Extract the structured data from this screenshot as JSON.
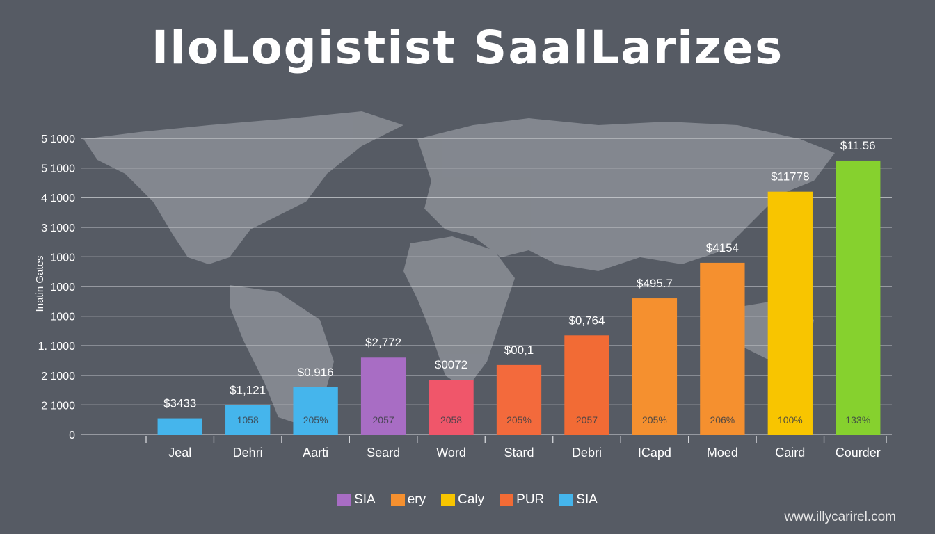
{
  "title": "IloLogistist SaalLarizes",
  "watermark": "www.illycarirel.com",
  "chart_data": {
    "type": "bar",
    "title": "IloLogistist SaalLarizes",
    "xlabel": "",
    "ylabel": "Inatin Gates",
    "ylim": [
      0,
      10
    ],
    "grid": true,
    "legend_position": "bottom-center",
    "y_ticks": [
      {
        "value": 0,
        "label": "0"
      },
      {
        "value": 1,
        "label": "2 1000"
      },
      {
        "value": 2,
        "label": "2 1000"
      },
      {
        "value": 3,
        "label": "1. 1000"
      },
      {
        "value": 4,
        "label": "1000"
      },
      {
        "value": 5,
        "label": "1000"
      },
      {
        "value": 6,
        "label": "1000"
      },
      {
        "value": 7,
        "label": "3 1000"
      },
      {
        "value": 8,
        "label": "4 1000"
      },
      {
        "value": 9,
        "label": "5 1000"
      },
      {
        "value": 10,
        "label": "5 1000"
      }
    ],
    "categories": [
      "Jeal",
      "Dehri",
      "Aarti",
      "Seard",
      "Word",
      "Stard",
      "Debri",
      "ICapd",
      "Moed",
      "Caird",
      "Courder"
    ],
    "values": [
      0.55,
      1.0,
      1.6,
      2.6,
      1.85,
      2.35,
      3.35,
      4.6,
      5.8,
      8.2,
      9.25
    ],
    "value_labels": [
      "$3433",
      "$1,121",
      "$0.916",
      "$2,772",
      "$0072",
      "$00,1",
      "$0,764",
      "$495.7",
      "$4154",
      "$11778",
      "$11.56"
    ],
    "inner_labels": [
      "",
      "1058",
      "205%",
      "2057",
      "2058",
      "205%",
      "2057",
      "205%",
      "206%",
      "100%",
      "133%"
    ],
    "colors": [
      "#45b5ec",
      "#45b5ec",
      "#45b5ec",
      "#a86dc4",
      "#f0566a",
      "#f36a3c",
      "#f26b35",
      "#f5902f",
      "#f5902f",
      "#f8c500",
      "#86d12e"
    ],
    "legend": [
      {
        "label": "SIA",
        "color": "#a86dc4"
      },
      {
        "label": "ery",
        "color": "#f5902f"
      },
      {
        "label": "Caly",
        "color": "#f8c500"
      },
      {
        "label": "PUR",
        "color": "#f26b35"
      },
      {
        "label": "SIA",
        "color": "#45b5ec"
      }
    ]
  }
}
